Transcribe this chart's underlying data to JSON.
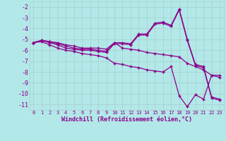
{
  "xlabel": "Windchill (Refroidissement éolien,°C)",
  "bg_color": "#b2e8e8",
  "line_color": "#8b008b",
  "grid_color": "#bbdddd",
  "x_hours": [
    0,
    1,
    2,
    3,
    4,
    5,
    6,
    7,
    8,
    9,
    10,
    11,
    12,
    13,
    14,
    15,
    16,
    17,
    18,
    19,
    20,
    21,
    22,
    23
  ],
  "line1": [
    -5.3,
    -5.1,
    -5.2,
    -5.3,
    -5.5,
    -5.6,
    -5.8,
    -5.8,
    -5.8,
    -5.9,
    -5.3,
    -5.8,
    -5.9,
    -6.0,
    -6.2,
    -6.3,
    -6.4,
    -6.5,
    -6.6,
    -7.2,
    -7.5,
    -7.8,
    -8.3,
    -8.3
  ],
  "line2": [
    -5.3,
    -5.1,
    -5.2,
    -5.4,
    -5.6,
    -5.8,
    -5.9,
    -5.9,
    -6.0,
    -6.1,
    -5.3,
    -5.3,
    -5.4,
    -4.5,
    -4.5,
    -3.5,
    -3.4,
    -3.7,
    -2.2,
    -5.0,
    -7.3,
    -7.5,
    -10.3,
    -10.5
  ],
  "line3": [
    -5.3,
    -5.1,
    -5.3,
    -5.5,
    -5.8,
    -5.9,
    -6.0,
    -6.0,
    -6.1,
    -6.2,
    -5.4,
    -5.4,
    -5.5,
    -4.6,
    -4.6,
    -3.6,
    -3.5,
    -3.8,
    -2.3,
    -5.1,
    -7.4,
    -7.6,
    -10.4,
    -10.6
  ],
  "line4": [
    -5.3,
    -5.2,
    -5.5,
    -5.8,
    -6.0,
    -6.1,
    -6.3,
    -6.4,
    -6.5,
    -6.7,
    -7.2,
    -7.3,
    -7.5,
    -7.6,
    -7.8,
    -7.9,
    -8.0,
    -7.5,
    -10.2,
    -11.2,
    -10.1,
    -10.5,
    -8.3,
    -8.5
  ],
  "ylim": [
    -11.5,
    -1.5
  ],
  "yticks": [
    -2,
    -3,
    -4,
    -5,
    -6,
    -7,
    -8,
    -9,
    -10,
    -11
  ],
  "xtick_labels": [
    "0",
    "1",
    "2",
    "3",
    "4",
    "5",
    "6",
    "7",
    "8",
    "9",
    "10",
    "11",
    "12",
    "13",
    "14",
    "15",
    "16",
    "17",
    "18",
    "19",
    "20",
    "21",
    "22",
    "23"
  ]
}
